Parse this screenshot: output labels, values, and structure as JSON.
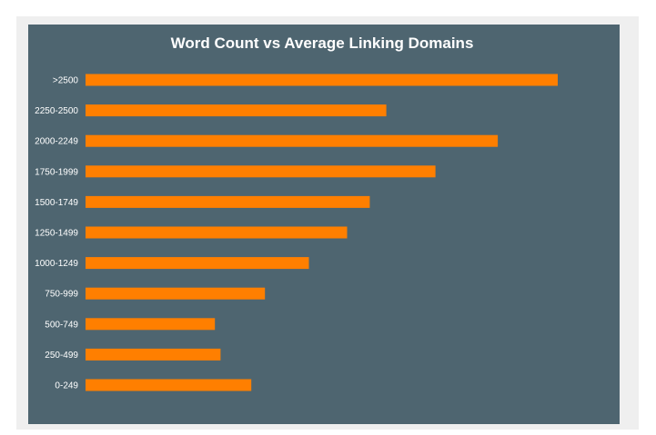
{
  "chart_data": {
    "type": "bar",
    "orientation": "horizontal",
    "title": "Word Count vs Average Linking Domains",
    "xlabel": "",
    "ylabel": "",
    "categories": [
      ">2500",
      "2250-2500",
      "2000-2249",
      "1750-1999",
      "1500-1749",
      "1250-1499",
      "1000-1249",
      "750-999",
      "500-749",
      "250-499",
      "0-249"
    ],
    "values": [
      100,
      63.7,
      87.3,
      74.1,
      60.2,
      55.4,
      47.3,
      38.0,
      27.4,
      28.6,
      35.1
    ],
    "xlim": [
      0,
      100
    ],
    "grid": false,
    "legend": "none",
    "colors": {
      "bar": "#ff7f00",
      "background": "#4e6570",
      "text": "#ffffff"
    }
  }
}
